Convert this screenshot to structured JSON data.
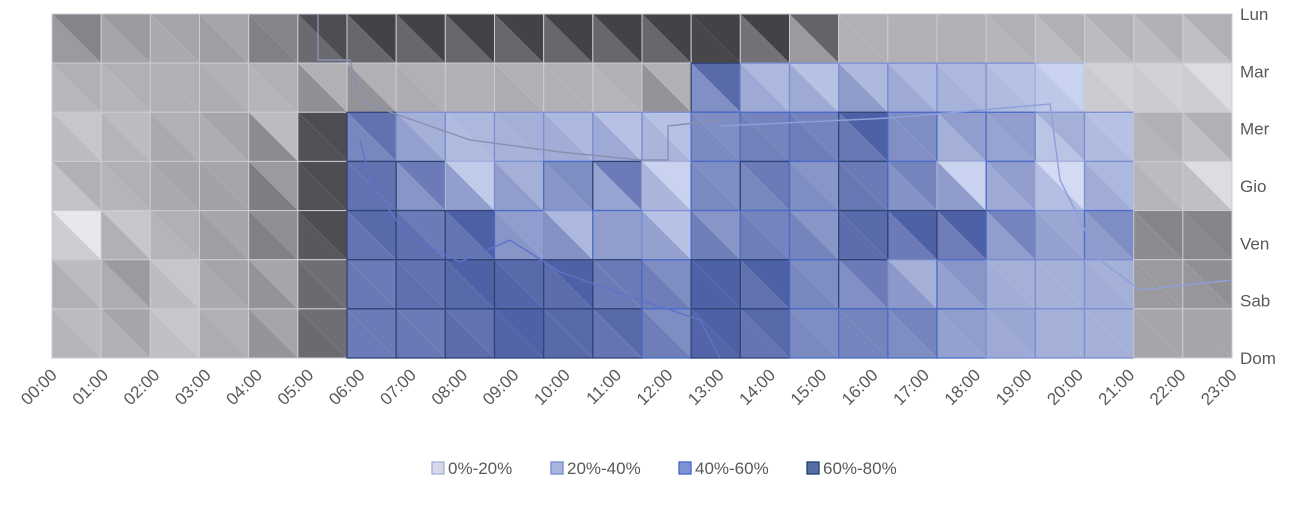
{
  "chart_data": {
    "type": "heatmap",
    "title": "",
    "xlabel": "",
    "ylabel": "",
    "x": [
      "00:00",
      "01:00",
      "02:00",
      "03:00",
      "04:00",
      "05:00",
      "06:00",
      "07:00",
      "08:00",
      "09:00",
      "10:00",
      "11:00",
      "12:00",
      "13:00",
      "14:00",
      "15:00",
      "16:00",
      "17:00",
      "18:00",
      "19:00",
      "20:00",
      "21:00",
      "22:00",
      "23:00"
    ],
    "y": [
      "Lun",
      "Mar",
      "Mer",
      "Gio",
      "Ven",
      "Sab",
      "Dom"
    ],
    "values": [
      [
        45,
        35,
        30,
        30,
        45,
        70,
        75,
        75,
        75,
        75,
        75,
        75,
        75,
        75,
        75,
        60,
        25,
        25,
        25,
        25,
        25,
        25,
        25,
        25
      ],
      [
        25,
        25,
        25,
        25,
        25,
        25,
        25,
        25,
        25,
        25,
        25,
        25,
        25,
        70,
        25,
        20,
        25,
        25,
        25,
        20,
        10,
        10,
        10,
        5
      ],
      [
        15,
        20,
        25,
        30,
        20,
        70,
        65,
        30,
        25,
        30,
        25,
        20,
        20,
        50,
        55,
        55,
        75,
        50,
        40,
        40,
        30,
        20,
        25,
        25
      ],
      [
        25,
        25,
        30,
        30,
        35,
        70,
        65,
        60,
        15,
        30,
        50,
        60,
        10,
        50,
        60,
        45,
        60,
        55,
        10,
        40,
        5,
        25,
        20,
        5
      ],
      [
        0,
        15,
        25,
        30,
        40,
        70,
        70,
        60,
        75,
        40,
        25,
        40,
        20,
        45,
        55,
        45,
        70,
        75,
        75,
        55,
        35,
        50,
        45,
        45
      ],
      [
        20,
        35,
        15,
        30,
        30,
        55,
        60,
        65,
        75,
        70,
        75,
        60,
        50,
        75,
        75,
        50,
        60,
        30,
        45,
        30,
        30,
        30,
        35,
        40
      ],
      [
        20,
        30,
        15,
        25,
        30,
        55,
        60,
        60,
        65,
        75,
        70,
        70,
        50,
        75,
        70,
        50,
        55,
        55,
        40,
        35,
        30,
        30,
        30,
        30
      ]
    ],
    "color_bands": [
      {
        "name": "0%-20%",
        "range": [
          0,
          20
        ],
        "color": "#d5d9eb",
        "border": "#a9b3db"
      },
      {
        "name": "20%-40%",
        "range": [
          20,
          40
        ],
        "color": "#a9b5e0",
        "border": "#7b8fd1"
      },
      {
        "name": "40%-60%",
        "range": [
          40,
          60
        ],
        "color": "#7e93d2",
        "border": "#4a6bc9"
      },
      {
        "name": "60%-80%",
        "range": [
          60,
          80
        ],
        "color": "#556ea3",
        "border": "#2f4577"
      }
    ],
    "grid": true,
    "legend_position": "bottom",
    "y_axis_side": "right"
  }
}
